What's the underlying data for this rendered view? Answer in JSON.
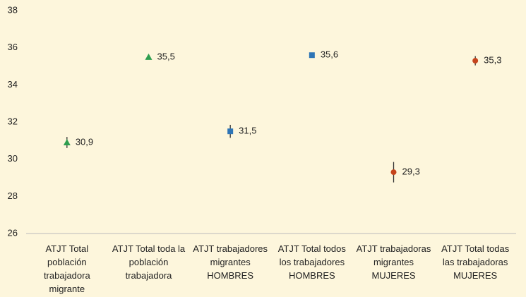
{
  "chart_data": {
    "type": "errorbar",
    "categories": [
      "ATJT Total población trabajadora migrante",
      "ATJT Total toda la población trabajadora",
      "ATJT trabajadores migrantes HOMBRES",
      "ATJT Total todos los trabajadores HOMBRES",
      "ATJT trabajadoras migrantes MUJERES",
      "ATJT Total todas las trabajadoras MUJERES"
    ],
    "values": [
      30.9,
      35.5,
      31.5,
      35.6,
      29.3,
      35.3
    ],
    "value_labels": [
      "30,9",
      "35,5",
      "31,5",
      "35,6",
      "29,3",
      "35,3"
    ],
    "errors": [
      0.3,
      0.1,
      0.35,
      0.1,
      0.55,
      0.25
    ],
    "colors": [
      "#2e9e4f",
      "#2e9e4f",
      "#2e75b6",
      "#2e75b6",
      "#c5441c",
      "#c5441c"
    ],
    "markers": [
      "triangle",
      "triangle",
      "square",
      "square",
      "circle",
      "circle"
    ],
    "ylim": [
      26,
      38
    ],
    "yticks": [
      26,
      28,
      30,
      32,
      34,
      36,
      38
    ],
    "grid": false
  }
}
